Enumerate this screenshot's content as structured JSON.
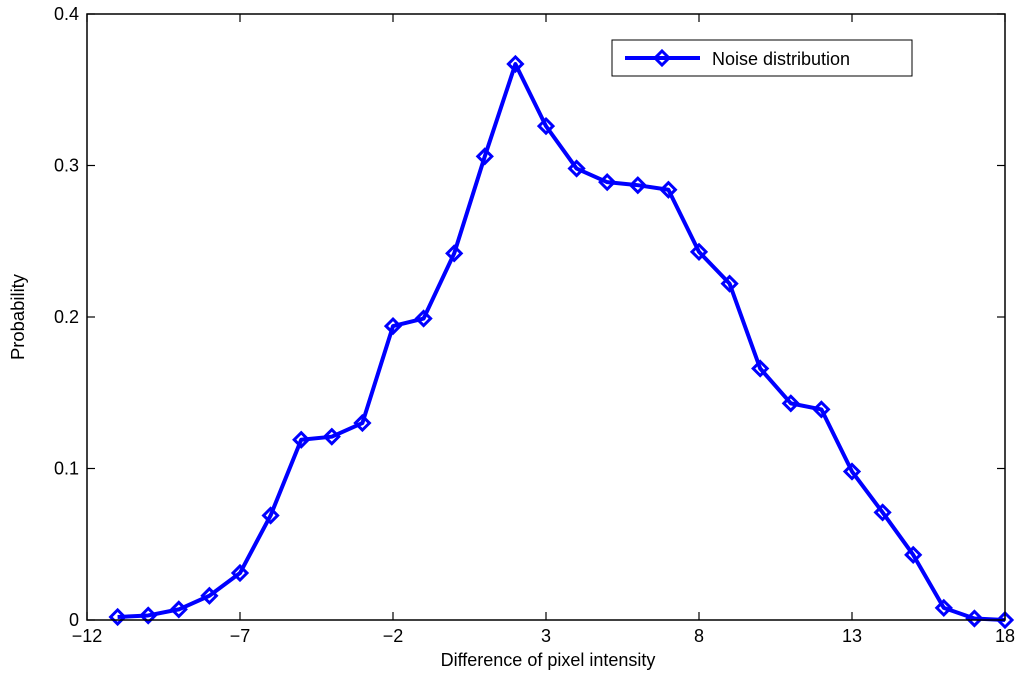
{
  "chart_data": {
    "type": "line",
    "xlabel": "Difference of pixel intensity",
    "ylabel": "Probability",
    "xlim": [
      -12,
      18
    ],
    "ylim": [
      0,
      0.4
    ],
    "xticks": [
      -12,
      -7,
      -2,
      3,
      8,
      13,
      18
    ],
    "xtick_labels": [
      "−12",
      "−7",
      "−2",
      "3",
      "8",
      "13",
      "18"
    ],
    "yticks": [
      0,
      0.1,
      0.2,
      0.3,
      0.4
    ],
    "ytick_labels": [
      "0",
      "0.1",
      "0.2",
      "0.3",
      "0.4"
    ],
    "grid": false,
    "legend_position": "top-right",
    "series": [
      {
        "name": "Noise distribution",
        "color": "#0000ff",
        "marker": "diamond",
        "x": [
          -11,
          -10,
          -9,
          -8,
          -7,
          -6,
          -5,
          -4,
          -3,
          -2,
          -1,
          0,
          1,
          2,
          3,
          4,
          5,
          6,
          7,
          8,
          9,
          10,
          11,
          12,
          13,
          14,
          15,
          16,
          17,
          18
        ],
        "y": [
          0.002,
          0.003,
          0.007,
          0.016,
          0.031,
          0.069,
          0.119,
          0.121,
          0.13,
          0.194,
          0.199,
          0.242,
          0.306,
          0.367,
          0.326,
          0.298,
          0.289,
          0.287,
          0.284,
          0.243,
          0.222,
          0.166,
          0.143,
          0.139,
          0.098,
          0.071,
          0.043,
          0.008,
          0.001,
          0.0
        ]
      }
    ]
  }
}
